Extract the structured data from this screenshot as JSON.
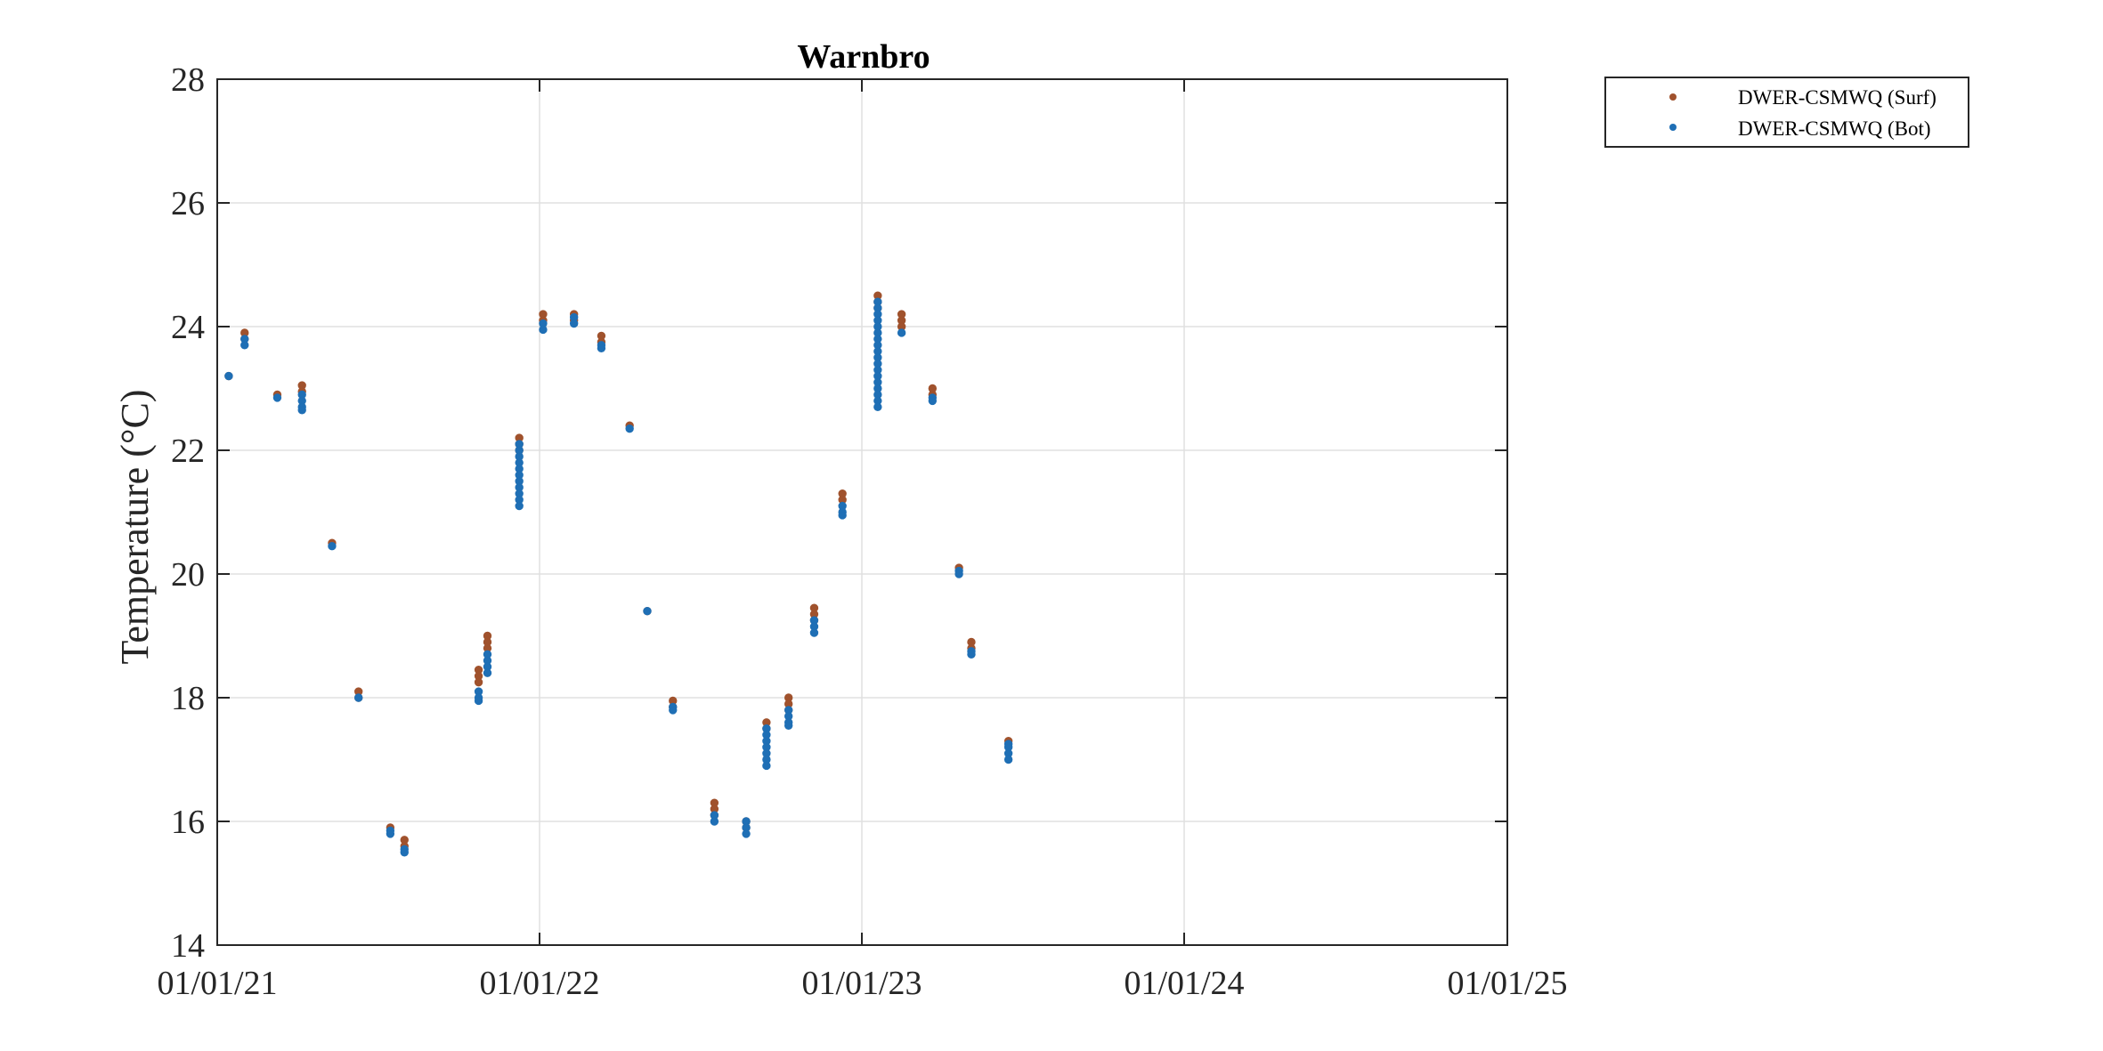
{
  "colors": {
    "surf": "#a0522d",
    "bot": "#1f6fb5",
    "grid": "#e0e0e0",
    "axis": "#262626"
  },
  "chart_data": {
    "type": "scatter",
    "title": "Warnbro",
    "xlabel": "",
    "ylabel": "Temperature (°C)",
    "xlim": [
      "2021-01-01",
      "2025-01-01"
    ],
    "ylim": [
      14,
      28
    ],
    "xticks": [
      "2021-01-01",
      "2022-01-01",
      "2023-01-01",
      "2024-01-01",
      "2025-01-01"
    ],
    "xtick_labels": [
      "01/01/21",
      "01/01/22",
      "01/01/23",
      "01/01/24",
      "01/01/25"
    ],
    "yticks": [
      14,
      16,
      18,
      20,
      22,
      24,
      26,
      28
    ],
    "grid": true,
    "legend_position": "outside top-right",
    "series": [
      {
        "name": "DWER-CSMWQ (Surf)",
        "color_key": "surf",
        "points": [
          [
            "2021-01-14",
            23.2
          ],
          [
            "2021-02-01",
            23.9
          ],
          [
            "2021-02-01",
            23.8
          ],
          [
            "2021-03-10",
            22.9
          ],
          [
            "2021-04-07",
            23.05
          ],
          [
            "2021-04-07",
            22.95
          ],
          [
            "2021-05-11",
            20.5
          ],
          [
            "2021-06-10",
            18.1
          ],
          [
            "2021-06-10",
            18.0
          ],
          [
            "2021-07-16",
            15.9
          ],
          [
            "2021-08-01",
            15.7
          ],
          [
            "2021-08-01",
            15.6
          ],
          [
            "2021-10-24",
            18.45
          ],
          [
            "2021-10-24",
            18.35
          ],
          [
            "2021-10-24",
            18.25
          ],
          [
            "2021-11-03",
            19.0
          ],
          [
            "2021-11-03",
            18.9
          ],
          [
            "2021-11-03",
            18.8
          ],
          [
            "2021-12-09",
            22.2
          ],
          [
            "2021-12-09",
            22.1
          ],
          [
            "2021-12-09",
            22.0
          ],
          [
            "2022-01-05",
            24.2
          ],
          [
            "2022-01-05",
            24.1
          ],
          [
            "2022-02-09",
            24.2
          ],
          [
            "2022-02-09",
            24.1
          ],
          [
            "2022-03-12",
            23.85
          ],
          [
            "2022-03-12",
            23.75
          ],
          [
            "2022-04-13",
            22.4
          ],
          [
            "2022-05-03",
            19.4
          ],
          [
            "2022-06-01",
            17.95
          ],
          [
            "2022-06-01",
            17.85
          ],
          [
            "2022-07-18",
            16.3
          ],
          [
            "2022-07-18",
            16.2
          ],
          [
            "2022-07-18",
            16.1
          ],
          [
            "2022-08-23",
            16.0
          ],
          [
            "2022-08-23",
            15.9
          ],
          [
            "2022-09-15",
            17.6
          ],
          [
            "2022-09-15",
            17.5
          ],
          [
            "2022-10-10",
            18.0
          ],
          [
            "2022-10-10",
            17.9
          ],
          [
            "2022-10-10",
            17.8
          ],
          [
            "2022-11-08",
            19.45
          ],
          [
            "2022-11-08",
            19.35
          ],
          [
            "2022-11-08",
            19.25
          ],
          [
            "2022-12-10",
            21.3
          ],
          [
            "2022-12-10",
            21.2
          ],
          [
            "2023-01-19",
            24.5
          ],
          [
            "2023-01-19",
            24.4
          ],
          [
            "2023-01-19",
            24.3
          ],
          [
            "2023-02-15",
            24.2
          ],
          [
            "2023-02-15",
            24.1
          ],
          [
            "2023-02-15",
            24.0
          ],
          [
            "2023-03-22",
            23.0
          ],
          [
            "2023-03-22",
            22.9
          ],
          [
            "2023-04-21",
            20.1
          ],
          [
            "2023-05-05",
            18.9
          ],
          [
            "2023-05-05",
            18.8
          ],
          [
            "2023-06-16",
            17.3
          ]
        ]
      },
      {
        "name": "DWER-CSMWQ (Bot)",
        "color_key": "bot",
        "points": [
          [
            "2021-01-14",
            23.2
          ],
          [
            "2021-02-01",
            23.8
          ],
          [
            "2021-02-01",
            23.7
          ],
          [
            "2021-03-10",
            22.85
          ],
          [
            "2021-04-07",
            22.9
          ],
          [
            "2021-04-07",
            22.8
          ],
          [
            "2021-04-07",
            22.7
          ],
          [
            "2021-04-07",
            22.65
          ],
          [
            "2021-05-11",
            20.45
          ],
          [
            "2021-06-10",
            18.0
          ],
          [
            "2021-07-16",
            15.85
          ],
          [
            "2021-07-16",
            15.8
          ],
          [
            "2021-08-01",
            15.55
          ],
          [
            "2021-08-01",
            15.5
          ],
          [
            "2021-10-24",
            18.1
          ],
          [
            "2021-10-24",
            18.0
          ],
          [
            "2021-10-24",
            17.95
          ],
          [
            "2021-11-03",
            18.7
          ],
          [
            "2021-11-03",
            18.6
          ],
          [
            "2021-11-03",
            18.5
          ],
          [
            "2021-11-03",
            18.4
          ],
          [
            "2021-12-09",
            22.1
          ],
          [
            "2021-12-09",
            22.0
          ],
          [
            "2021-12-09",
            21.9
          ],
          [
            "2021-12-09",
            21.8
          ],
          [
            "2021-12-09",
            21.7
          ],
          [
            "2021-12-09",
            21.6
          ],
          [
            "2021-12-09",
            21.5
          ],
          [
            "2021-12-09",
            21.4
          ],
          [
            "2021-12-09",
            21.3
          ],
          [
            "2021-12-09",
            21.2
          ],
          [
            "2021-12-09",
            21.1
          ],
          [
            "2022-01-05",
            24.05
          ],
          [
            "2022-01-05",
            23.95
          ],
          [
            "2022-02-09",
            24.15
          ],
          [
            "2022-02-09",
            24.05
          ],
          [
            "2022-03-12",
            23.7
          ],
          [
            "2022-03-12",
            23.65
          ],
          [
            "2022-04-13",
            22.35
          ],
          [
            "2022-05-03",
            19.4
          ],
          [
            "2022-06-01",
            17.85
          ],
          [
            "2022-06-01",
            17.8
          ],
          [
            "2022-07-18",
            16.1
          ],
          [
            "2022-07-18",
            16.0
          ],
          [
            "2022-08-23",
            16.0
          ],
          [
            "2022-08-23",
            15.9
          ],
          [
            "2022-08-23",
            15.8
          ],
          [
            "2022-09-15",
            17.5
          ],
          [
            "2022-09-15",
            17.4
          ],
          [
            "2022-09-15",
            17.3
          ],
          [
            "2022-09-15",
            17.2
          ],
          [
            "2022-09-15",
            17.1
          ],
          [
            "2022-09-15",
            17.0
          ],
          [
            "2022-09-15",
            16.9
          ],
          [
            "2022-10-10",
            17.8
          ],
          [
            "2022-10-10",
            17.7
          ],
          [
            "2022-10-10",
            17.6
          ],
          [
            "2022-10-10",
            17.55
          ],
          [
            "2022-11-08",
            19.25
          ],
          [
            "2022-11-08",
            19.15
          ],
          [
            "2022-11-08",
            19.05
          ],
          [
            "2022-12-10",
            21.1
          ],
          [
            "2022-12-10",
            21.0
          ],
          [
            "2022-12-10",
            20.95
          ],
          [
            "2023-01-19",
            24.4
          ],
          [
            "2023-01-19",
            24.3
          ],
          [
            "2023-01-19",
            24.2
          ],
          [
            "2023-01-19",
            24.1
          ],
          [
            "2023-01-19",
            24.0
          ],
          [
            "2023-01-19",
            23.9
          ],
          [
            "2023-01-19",
            23.8
          ],
          [
            "2023-01-19",
            23.7
          ],
          [
            "2023-01-19",
            23.6
          ],
          [
            "2023-01-19",
            23.5
          ],
          [
            "2023-01-19",
            23.4
          ],
          [
            "2023-01-19",
            23.3
          ],
          [
            "2023-01-19",
            23.2
          ],
          [
            "2023-01-19",
            23.1
          ],
          [
            "2023-01-19",
            23.0
          ],
          [
            "2023-01-19",
            22.9
          ],
          [
            "2023-01-19",
            22.8
          ],
          [
            "2023-01-19",
            22.7
          ],
          [
            "2023-02-15",
            23.9
          ],
          [
            "2023-03-22",
            22.85
          ],
          [
            "2023-03-22",
            22.8
          ],
          [
            "2023-04-21",
            20.05
          ],
          [
            "2023-04-21",
            20.0
          ],
          [
            "2023-05-05",
            18.75
          ],
          [
            "2023-05-05",
            18.7
          ],
          [
            "2023-06-16",
            17.25
          ],
          [
            "2023-06-16",
            17.2
          ],
          [
            "2023-06-16",
            17.1
          ],
          [
            "2023-06-16",
            17.0
          ]
        ]
      }
    ]
  }
}
